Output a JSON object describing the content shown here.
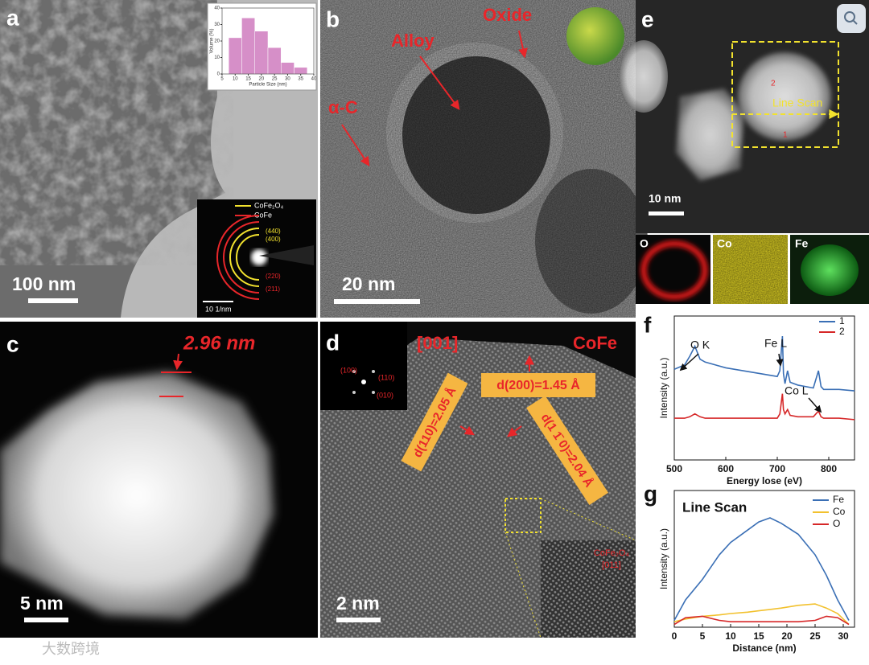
{
  "panels": {
    "a": {
      "label": "a",
      "scale_bar": "100 nm",
      "saed": {
        "legend": [
          "CoFe₂O₄",
          "CoFe"
        ],
        "rings": [
          "(440)",
          "(400)",
          "(220)",
          "(211)"
        ],
        "scale_bar": "10 1/nm"
      }
    },
    "b": {
      "label": "b",
      "annotations": [
        "Oxide",
        "Alloy",
        "α-C"
      ],
      "scale_bar": "20 nm"
    },
    "c": {
      "label": "c",
      "measurement": "2.96 nm",
      "scale_bar": "5 nm"
    },
    "d": {
      "label": "d",
      "zone_axis": "[001]",
      "phase": "CoFe",
      "fft_spots": [
        "(100)",
        "(110)",
        "(010)"
      ],
      "spacings": [
        "d(110)=2.05 Å",
        "d(200)=1.45 Å",
        "d(1 1̄ 0)=2.04 Å"
      ],
      "inset": [
        "CoFe₂O₄",
        "[011]"
      ],
      "scale_bar": "2 nm"
    },
    "e": {
      "label": "e",
      "line_scan": "Line Scan",
      "points": [
        "2",
        "1"
      ],
      "scale_bar": "10 nm",
      "maps": [
        "O",
        "Co",
        "Fe"
      ]
    },
    "f": {
      "label": "f"
    },
    "g": {
      "label": "g"
    }
  },
  "watermark": "大数跨境",
  "chart_data": [
    {
      "type": "line",
      "x_label": "Energy lose (eV)",
      "y_label": "Intensity (a.u.)",
      "x": [
        500,
        520,
        530,
        540,
        550,
        560,
        600,
        650,
        700,
        705,
        710,
        712,
        715,
        720,
        725,
        740,
        770,
        780,
        785,
        790,
        820,
        850
      ],
      "series": [
        {
          "name": "1",
          "color": "#3a6fb5",
          "values": [
            6.3,
            6.6,
            7.2,
            7.9,
            7.0,
            6.8,
            6.4,
            6.1,
            5.8,
            6.2,
            8.6,
            6.0,
            5.3,
            6.2,
            5.4,
            5.2,
            5.0,
            6.2,
            5.1,
            4.9,
            4.9,
            4.8
          ]
        },
        {
          "name": "2",
          "color": "#d62728",
          "values": [
            2.9,
            2.9,
            3.0,
            3.2,
            3.0,
            2.9,
            2.9,
            2.9,
            2.9,
            3.2,
            4.6,
            3.5,
            3.2,
            3.5,
            3.1,
            3.0,
            3.0,
            3.4,
            3.0,
            2.9,
            2.9,
            2.8
          ]
        }
      ],
      "annotations": [
        "O K",
        "Fe L",
        "Co L"
      ],
      "xlim": [
        500,
        850
      ],
      "xticks": [
        500,
        600,
        700,
        800
      ],
      "ylim": [
        0,
        10
      ]
    },
    {
      "type": "line",
      "title": "Line Scan",
      "x_label": "Distance (nm)",
      "y_label": "Intensity (a.u.)",
      "x": [
        0,
        2,
        5,
        8,
        10,
        13,
        15,
        17,
        19,
        22,
        25,
        27,
        29,
        31
      ],
      "series": [
        {
          "name": "Fe",
          "color": "#3a6fb5",
          "values": [
            0.5,
            2.0,
            3.5,
            5.3,
            6.2,
            7.1,
            7.7,
            8.0,
            7.6,
            6.8,
            5.3,
            3.8,
            2.0,
            0.5
          ]
        },
        {
          "name": "Co",
          "color": "#f2c12e",
          "values": [
            0.4,
            0.6,
            0.8,
            0.9,
            1.0,
            1.1,
            1.2,
            1.3,
            1.4,
            1.6,
            1.7,
            1.4,
            1.0,
            0.2
          ]
        },
        {
          "name": "O",
          "color": "#d62728",
          "values": [
            0.2,
            0.7,
            0.8,
            0.5,
            0.4,
            0.4,
            0.4,
            0.4,
            0.4,
            0.4,
            0.5,
            0.8,
            0.7,
            0.2
          ]
        }
      ],
      "xlim": [
        0,
        32
      ],
      "xticks": [
        0,
        5,
        10,
        15,
        20,
        25,
        30
      ],
      "ylim": [
        0,
        10
      ]
    },
    {
      "type": "histogram",
      "x_label": "Particle Size (nm)",
      "y_label": "Volume (%)",
      "color": "#d68fc8",
      "bins": [
        7.5,
        12.5,
        17.5,
        22.5,
        27.5,
        32.5,
        37.5
      ],
      "counts": [
        22,
        34,
        26,
        16,
        7,
        4
      ],
      "xlim": [
        5,
        40
      ],
      "xticks": [
        5,
        10,
        15,
        20,
        25,
        30,
        35,
        40
      ],
      "ylim": [
        0,
        40
      ],
      "yticks": [
        0,
        10,
        20,
        30,
        40
      ]
    }
  ]
}
